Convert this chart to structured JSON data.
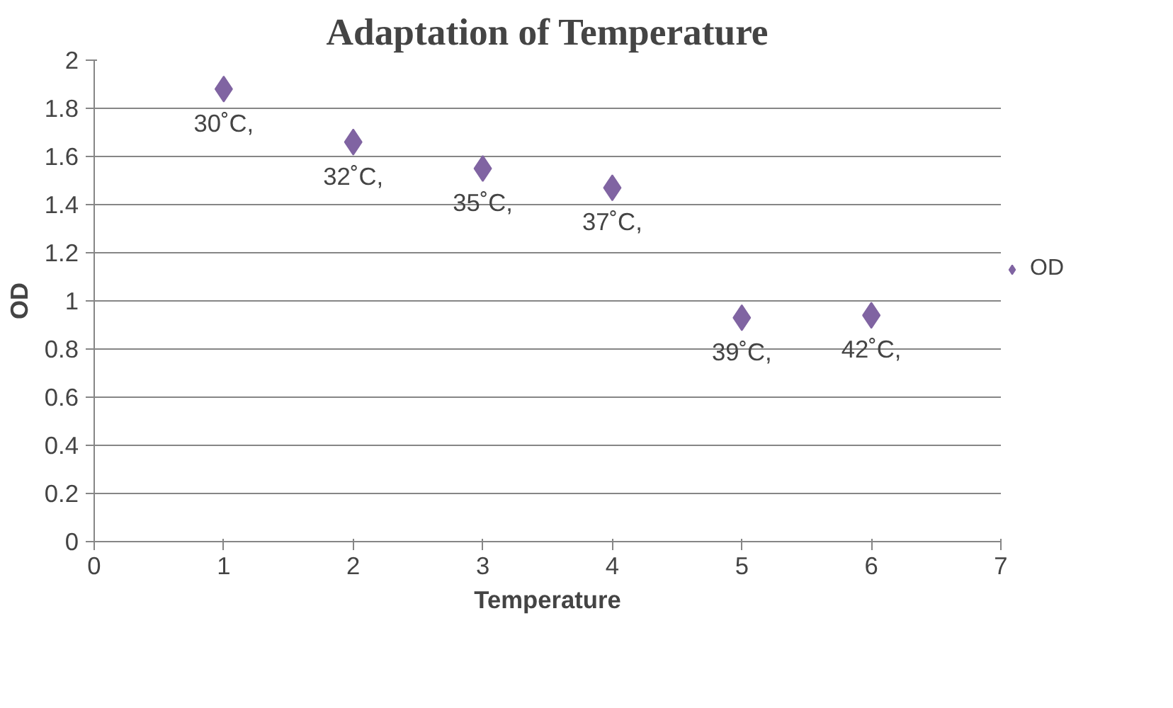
{
  "chart_data": {
    "type": "scatter",
    "title": "Adaptation of Temperature",
    "xlabel": "Temperature",
    "ylabel": "OD",
    "x": [
      1,
      2,
      3,
      4,
      5,
      6
    ],
    "series": [
      {
        "name": "OD",
        "color": "#8064a2",
        "values": [
          1.88,
          1.66,
          1.55,
          1.47,
          0.93,
          0.94
        ]
      }
    ],
    "annotations": [
      {
        "text": "30˚C,",
        "x": 1,
        "y": 1.88
      },
      {
        "text": "32˚C,",
        "x": 2,
        "y": 1.66
      },
      {
        "text": "35˚C,",
        "x": 3,
        "y": 1.55
      },
      {
        "text": "37˚C,",
        "x": 4,
        "y": 1.47
      },
      {
        "text": "39˚C,",
        "x": 5,
        "y": 0.93
      },
      {
        "text": "42˚C,",
        "x": 6,
        "y": 0.94
      }
    ],
    "xlim": [
      0,
      7
    ],
    "ylim": [
      0,
      2
    ],
    "xticks": [
      0,
      1,
      2,
      3,
      4,
      5,
      6,
      7
    ],
    "yticks": [
      0,
      0.2,
      0.4,
      0.6,
      0.8,
      1,
      1.2,
      1.4,
      1.6,
      1.8,
      2
    ],
    "grid": "y",
    "legend": "right",
    "marker": "diamond"
  }
}
